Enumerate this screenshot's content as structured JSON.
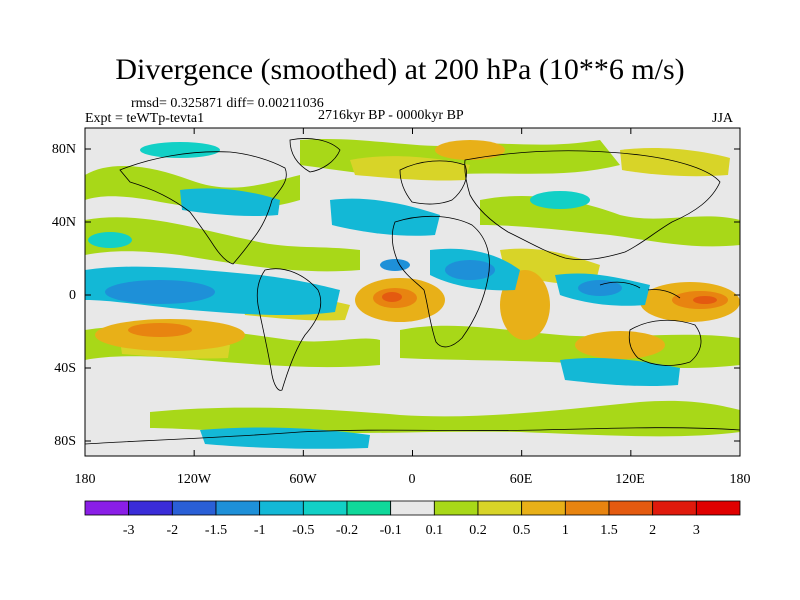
{
  "title": "Divergence (smoothed) at 200 hPa (10**6 m/s)",
  "stats_line": "rmsd= 0.325871 diff= 0.00211036",
  "expt_label": "Expt = teWTp-tevta1",
  "period_label": "2716kyr BP - 0000kyr BP",
  "season_label": "JJA",
  "x_tick_labels": [
    "180",
    "120W",
    "60W",
    "0",
    "60E",
    "120E",
    "180"
  ],
  "y_tick_labels": [
    "80N",
    "40N",
    "0",
    "40S",
    "80S"
  ],
  "colorbar": {
    "labels": [
      "-3",
      "-2",
      "-1.5",
      "-1",
      "-0.5",
      "-0.2",
      "-0.1",
      "0.1",
      "0.2",
      "0.5",
      "1",
      "1.5",
      "2",
      "3"
    ],
    "colors": [
      "#8a1ee6",
      "#3a2cd8",
      "#2a5fd6",
      "#1e90d8",
      "#13b8d6",
      "#12d0c6",
      "#10d89a",
      "#e8e8e8",
      "#a8d818",
      "#d8d428",
      "#e8b018",
      "#e88410",
      "#e45a10",
      "#e01a0c",
      "#e00000"
    ]
  },
  "colors": {
    "ocean_background": "#e8e8e8",
    "coastline": "#000000"
  }
}
